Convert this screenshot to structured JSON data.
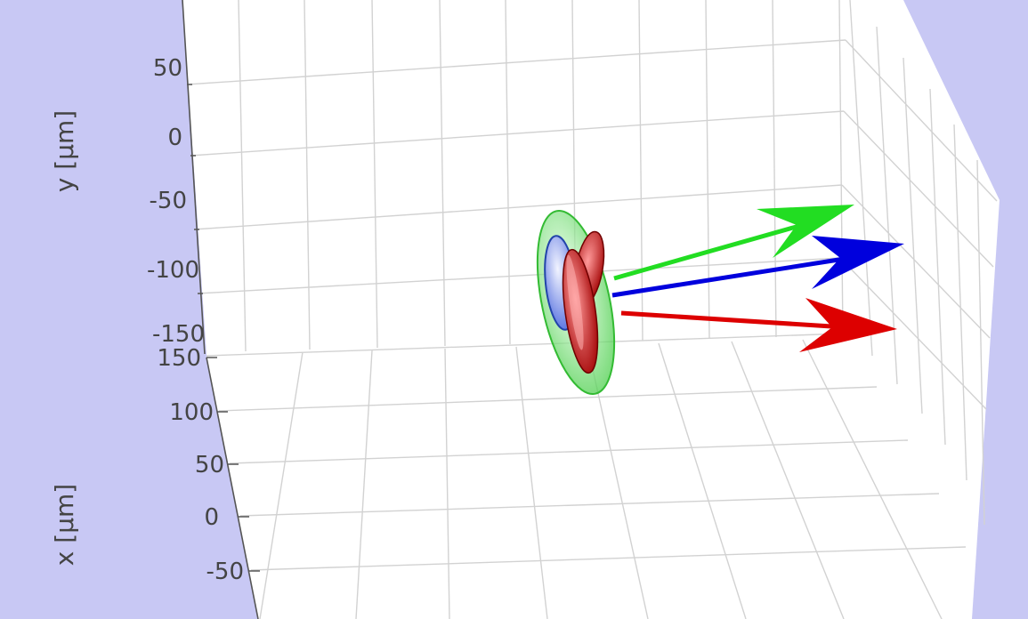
{
  "chart_data": {
    "type": "scatter",
    "title": "",
    "projection": "3d",
    "grid": true,
    "ylabel": "y [μm]",
    "xlabel": "x [μm]",
    "y_ticks": [
      "50",
      "0",
      "-50",
      "-100",
      "-150"
    ],
    "x_ticks": [
      "150",
      "100",
      "50",
      "0",
      "-50"
    ],
    "ylim": [
      -150,
      60
    ],
    "xlim": [
      -60,
      150
    ],
    "vectors": [
      {
        "color": "#22dd22"
      },
      {
        "color": "#0000dd"
      },
      {
        "color": "#dd0000"
      }
    ],
    "ellipsoids": [
      {
        "color": "#66dd66"
      },
      {
        "color": "#4466dd"
      },
      {
        "color": "#cc1111"
      }
    ]
  },
  "colors": {
    "background": "#c8c8f4",
    "pane": "#ffffff",
    "grid": "#d0d0d0",
    "text": "#444444"
  }
}
